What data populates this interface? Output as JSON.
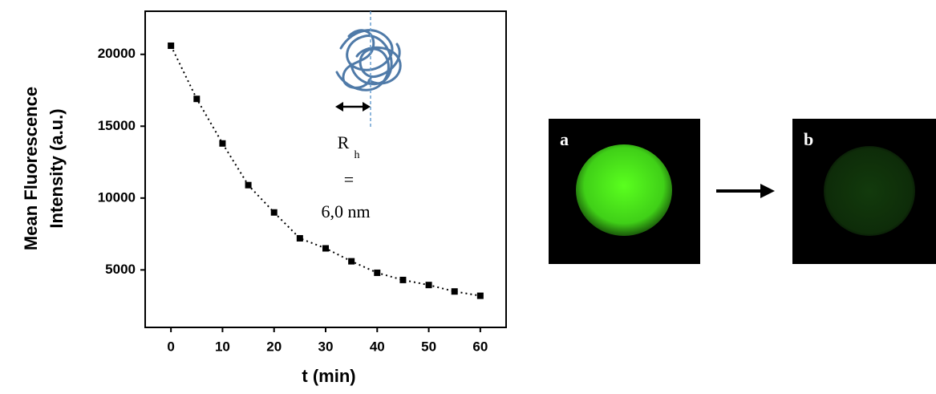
{
  "chart_data": {
    "type": "scatter",
    "x_label": "t (min)",
    "y_label": [
      "Mean Fluorescence",
      "Intensity (a.u.)"
    ],
    "x": [
      0,
      5,
      10,
      15,
      20,
      25,
      30,
      35,
      40,
      45,
      50,
      55,
      60
    ],
    "series": [
      {
        "color": "#000000",
        "values": [
          20600,
          16900,
          13800,
          10900,
          9000,
          7200,
          6500,
          5600,
          4800,
          4300,
          3950,
          3500,
          3200
        ]
      }
    ],
    "xlim": [
      -5,
      65
    ],
    "xticks": [
      0,
      10,
      20,
      30,
      40,
      50,
      60
    ],
    "ylim": [
      1000,
      23000
    ],
    "yticks": [
      5000,
      10000,
      15000,
      20000
    ],
    "annotations": [
      "R",
      "h",
      "=",
      "6,0 nm"
    ],
    "panel_labels": [
      "a",
      "b"
    ]
  }
}
